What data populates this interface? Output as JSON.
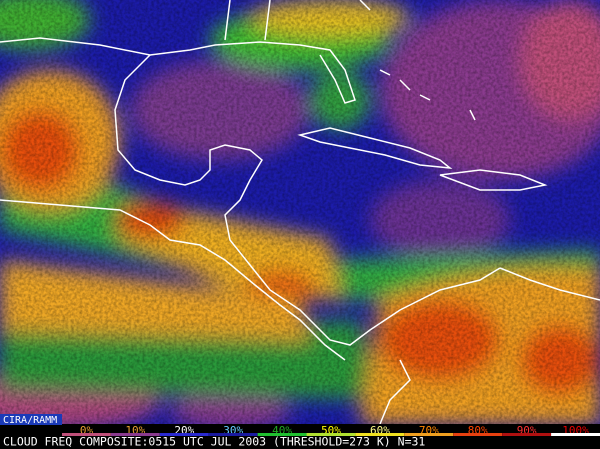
{
  "credit": "CIRA/RAMM",
  "legend": {
    "labels": [
      "0%",
      "10%",
      "20%",
      "30%",
      "40%",
      "50%",
      "60%",
      "70%",
      "80%",
      "90%",
      "100%"
    ]
  },
  "caption": "CLOUD FREQ COMPOSITE:0515 UTC JUL 2003 (THRESHOLD=273 K) N=31"
}
